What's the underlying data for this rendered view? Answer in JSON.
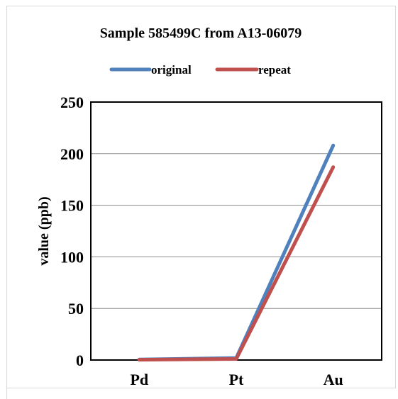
{
  "chart_data": {
    "type": "line",
    "title": "Sample 585499C from A13-06079",
    "xlabel": "",
    "ylabel": "value (ppb)",
    "categories": [
      "Pd",
      "Pt",
      "Au"
    ],
    "series": [
      {
        "name": "original",
        "values": [
          0.5,
          2,
          208
        ],
        "color": "#4f81bd"
      },
      {
        "name": "repeat",
        "values": [
          0.3,
          1,
          187
        ],
        "color": "#c0504d"
      }
    ],
    "ylim": [
      0,
      250
    ],
    "yticks": [
      0,
      50,
      100,
      150,
      200,
      250
    ],
    "grid": true,
    "legend": "top"
  }
}
